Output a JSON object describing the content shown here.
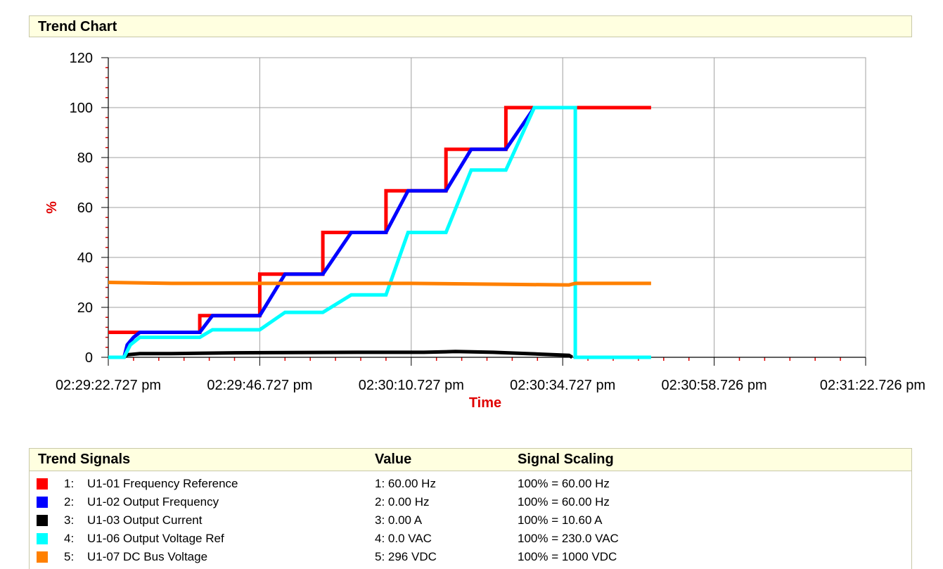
{
  "panel": {
    "title": "Trend Chart"
  },
  "chart_data": {
    "type": "line",
    "ylabel": "%",
    "xlabel": "Time",
    "ylim": [
      0,
      120
    ],
    "yticks": [
      0,
      20,
      40,
      60,
      80,
      100,
      120
    ],
    "xlim_seconds_range": [
      0,
      120
    ],
    "xticks": [
      "02:29:22.727 pm",
      "02:29:46.727 pm",
      "02:30:10.727 pm",
      "02:30:34.727 pm",
      "02:30:58.726 pm",
      "02:31:22.726 pm"
    ],
    "grid": true,
    "series": [
      {
        "name": "U1-01 Frequency Reference",
        "color": "#ff0000",
        "points": [
          [
            0,
            10
          ],
          [
            14.5,
            10
          ],
          [
            14.5,
            16.7
          ],
          [
            24,
            16.7
          ],
          [
            24,
            33.3
          ],
          [
            34,
            33.3
          ],
          [
            34,
            50
          ],
          [
            44,
            50
          ],
          [
            44,
            66.7
          ],
          [
            53.5,
            66.7
          ],
          [
            53.5,
            83.3
          ],
          [
            63,
            83.3
          ],
          [
            63,
            100
          ],
          [
            86,
            100
          ]
        ]
      },
      {
        "name": "U1-02 Output Frequency",
        "color": "#0000ff",
        "points": [
          [
            2.5,
            0
          ],
          [
            3,
            5
          ],
          [
            4,
            8
          ],
          [
            5,
            10
          ],
          [
            14.5,
            10
          ],
          [
            16.5,
            16.7
          ],
          [
            24,
            16.7
          ],
          [
            28,
            33.3
          ],
          [
            34,
            33.3
          ],
          [
            38.5,
            50
          ],
          [
            44,
            50
          ],
          [
            47.5,
            66.7
          ],
          [
            53.5,
            66.7
          ],
          [
            57.5,
            83.3
          ],
          [
            63,
            83.3
          ],
          [
            67.5,
            100
          ],
          [
            74,
            100
          ]
        ]
      },
      {
        "name": "U1-03 Output Current",
        "color": "#000000",
        "points": [
          [
            2.5,
            0
          ],
          [
            3,
            1
          ],
          [
            5,
            1.5
          ],
          [
            10,
            1.5
          ],
          [
            20,
            1.8
          ],
          [
            40,
            2
          ],
          [
            50,
            2
          ],
          [
            55,
            2.3
          ],
          [
            61,
            2
          ],
          [
            69,
            1.2
          ],
          [
            73,
            0.8
          ],
          [
            73.5,
            0
          ]
        ]
      },
      {
        "name": "U1-06 Output Voltage Ref",
        "color": "#00ffff",
        "points": [
          [
            0,
            0
          ],
          [
            2.5,
            0
          ],
          [
            3.5,
            5
          ],
          [
            5,
            8
          ],
          [
            14.5,
            8
          ],
          [
            16.5,
            11
          ],
          [
            24,
            11
          ],
          [
            28,
            18
          ],
          [
            34,
            18
          ],
          [
            38.5,
            25
          ],
          [
            44,
            25
          ],
          [
            47.5,
            50
          ],
          [
            53.5,
            50
          ],
          [
            57.5,
            75
          ],
          [
            63,
            75
          ],
          [
            67.5,
            100
          ],
          [
            74,
            100
          ],
          [
            74,
            0
          ],
          [
            86,
            0
          ]
        ]
      },
      {
        "name": "U1-07 DC Bus Voltage",
        "color": "#ff8000",
        "points": [
          [
            0,
            30
          ],
          [
            10,
            29.6
          ],
          [
            30,
            29.6
          ],
          [
            48,
            29.6
          ],
          [
            63,
            29.2
          ],
          [
            73,
            29
          ],
          [
            74,
            29.6
          ],
          [
            86,
            29.6
          ]
        ]
      }
    ]
  },
  "legend": {
    "col_signals": "Trend Signals",
    "col_value": "Value",
    "col_scaling": "Signal Scaling",
    "rows": [
      {
        "idx": "1:",
        "name": "U1-01 Frequency Reference",
        "value": "1: 60.00 Hz",
        "scaling": "100% = 60.00 Hz",
        "color": "#ff0000"
      },
      {
        "idx": "2:",
        "name": "U1-02 Output Frequency",
        "value": "2: 0.00 Hz",
        "scaling": "100% = 60.00 Hz",
        "color": "#0000ff"
      },
      {
        "idx": "3:",
        "name": "U1-03 Output Current",
        "value": "3: 0.00 A",
        "scaling": "100% = 10.60 A",
        "color": "#000000"
      },
      {
        "idx": "4:",
        "name": "U1-06 Output Voltage Ref",
        "value": "4: 0.0 VAC",
        "scaling": "100% = 230.0 VAC",
        "color": "#00ffff"
      },
      {
        "idx": "5:",
        "name": "U1-07 DC Bus Voltage",
        "value": "5: 296 VDC",
        "scaling": "100% = 1000 VDC",
        "color": "#ff8000"
      }
    ]
  }
}
